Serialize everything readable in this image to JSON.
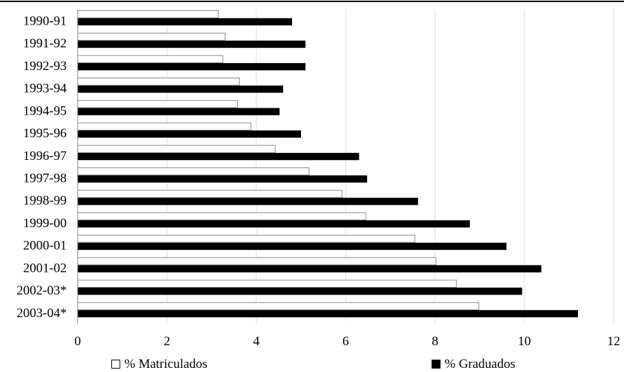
{
  "chart_data": {
    "type": "bar",
    "orientation": "horizontal",
    "title": "",
    "xlabel": "",
    "ylabel": "",
    "xlim": [
      0,
      12
    ],
    "x_ticks": [
      "0",
      "2",
      "4",
      "6",
      "8",
      "10",
      "12"
    ],
    "grid": "vertical gridlines",
    "legend_position": "bottom",
    "categories": [
      "1990-91",
      "1991-92",
      "1992-93",
      "1993-94",
      "1994-95",
      "1995-96",
      "1996-97",
      "1997-98",
      "1998-99",
      "1999-00",
      "2000-01",
      "2001-02",
      "2002-03*",
      "2003-04*"
    ],
    "series": [
      {
        "name": "% Matriculados",
        "color": "#ffffff",
        "values": [
          3.15,
          3.3,
          3.25,
          3.62,
          3.58,
          3.88,
          4.42,
          5.18,
          5.92,
          6.45,
          7.55,
          8.02,
          8.48,
          8.98
        ]
      },
      {
        "name": "% Graduados",
        "color": "#000000",
        "values": [
          4.8,
          5.1,
          5.1,
          4.6,
          4.52,
          5.0,
          6.3,
          6.48,
          7.62,
          8.78,
          9.6,
          10.38,
          9.95,
          11.2
        ]
      }
    ]
  }
}
